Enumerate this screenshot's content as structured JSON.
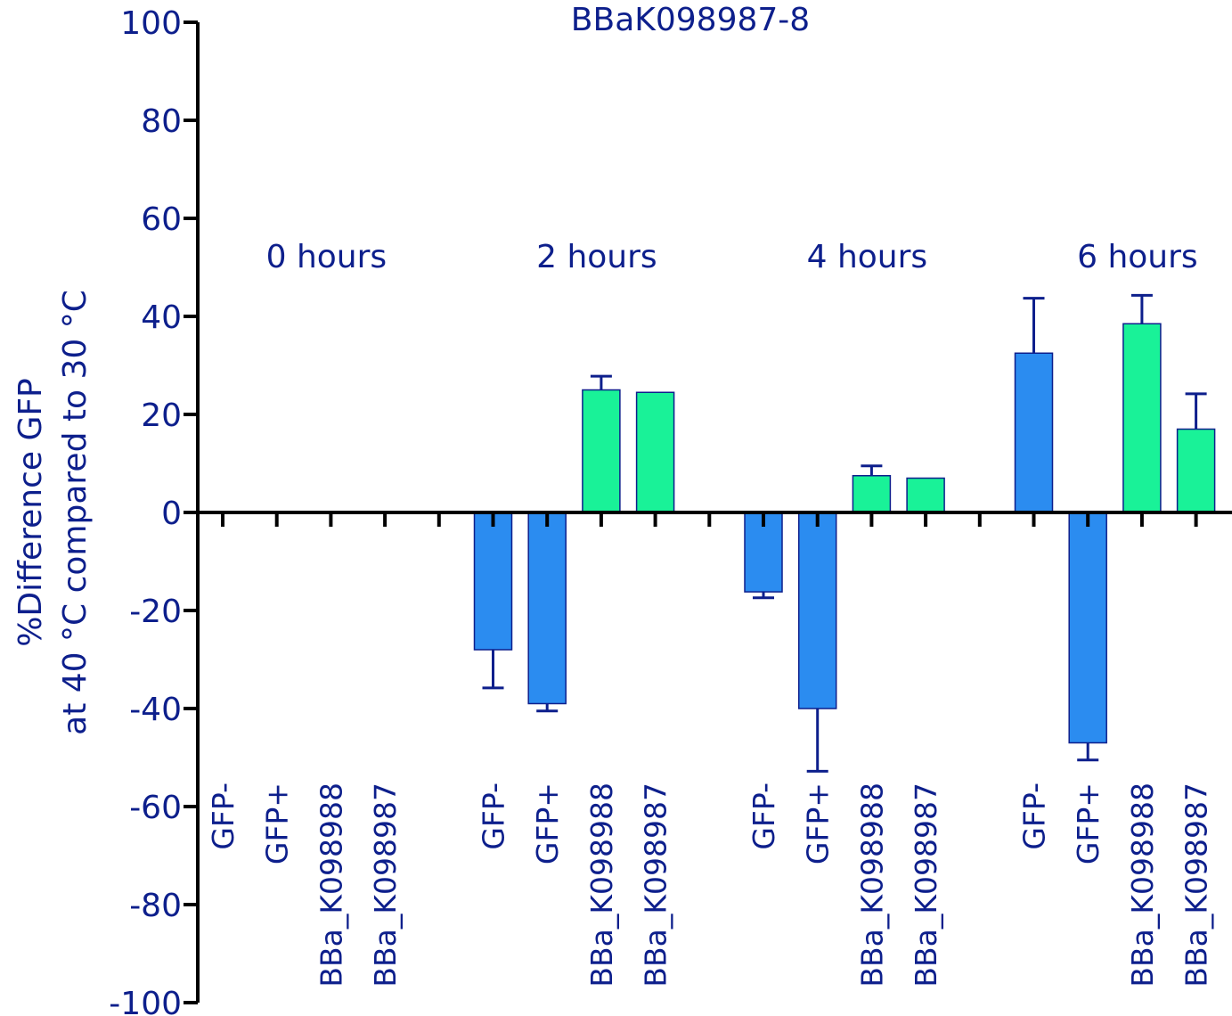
{
  "chart_data": {
    "type": "bar",
    "title": "BBaK098987-8",
    "ylabel_line1": "%Difference GFP",
    "ylabel_line2": "at 40 °C compared to 30 °C",
    "ylim": [
      -100,
      100
    ],
    "yticks": [
      "100",
      "80",
      "60",
      "40",
      "20",
      "0",
      "-20",
      "-40",
      "-60",
      "-80",
      "-100"
    ],
    "grid": false,
    "colors": {
      "GFP-": "#2b8cf0",
      "GFP+": "#2b8cf0",
      "BBa_K098988": "#19f298",
      "BBa_K098987": "#19f298",
      "axis": "#000000",
      "text": "#0d1f8c",
      "error": "#0d1f8c"
    },
    "categories": [
      "GFP-",
      "GFP+",
      "BBa_K098988",
      "BBa_K098987"
    ],
    "groups": [
      {
        "label": "0 hours",
        "values": [
          0,
          0,
          0,
          0
        ],
        "errors": [
          0,
          0,
          0,
          0
        ]
      },
      {
        "label": "2 hours",
        "values": [
          -28,
          -39,
          25,
          24.5
        ],
        "errors": [
          7.8,
          1.5,
          2.8,
          0
        ]
      },
      {
        "label": "4 hours",
        "values": [
          -16.2,
          -40,
          7.5,
          7
        ],
        "errors": [
          1.2,
          12.8,
          2,
          0
        ]
      },
      {
        "label": "6 hours",
        "values": [
          32.5,
          -47,
          38.5,
          17
        ],
        "errors": [
          11.2,
          3.5,
          5.8,
          7.2
        ]
      }
    ]
  }
}
